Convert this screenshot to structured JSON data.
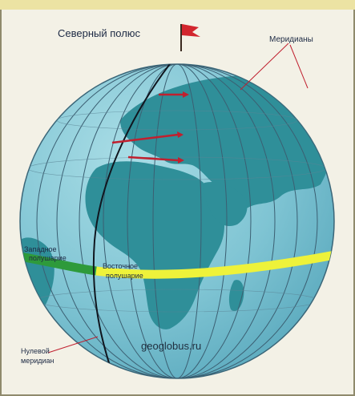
{
  "labels": {
    "north_pole": "Северный полюс",
    "meridians": "Меридианы",
    "zero_meridian_line1": "Нулевой",
    "zero_meridian_line2": "меридиан",
    "western_hemisphere_line1": "Западное",
    "western_hemisphere_line2": "полушарие",
    "eastern_hemisphere_line1": "Восточное",
    "eastern_hemisphere_line2": "полушарие",
    "watermark": "geoglobus.ru"
  },
  "colors": {
    "ocean": "#7fc4d3",
    "land": "#2f8f99",
    "equator_west": "#2e9a3b",
    "equator_east": "#eef23a",
    "pointer_red": "#c0202f",
    "flag": "#d2262e"
  },
  "icons": {
    "flag": "flag-icon"
  }
}
